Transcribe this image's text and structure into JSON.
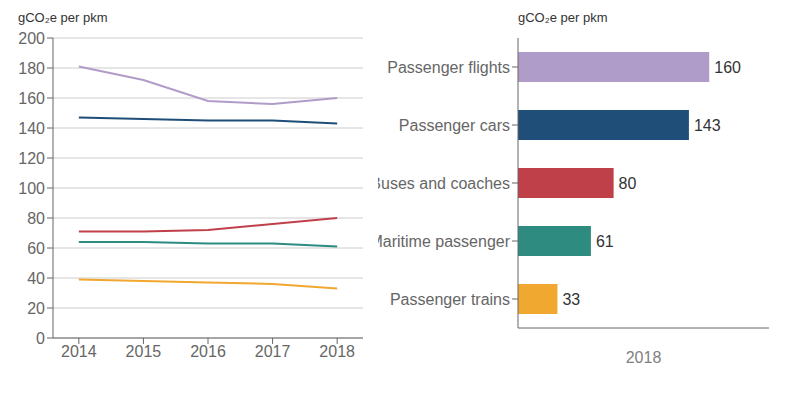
{
  "chart_data": [
    {
      "type": "line",
      "ylabel": "gCO₂e per pkm",
      "x": [
        2014,
        2015,
        2016,
        2017,
        2018
      ],
      "series": [
        {
          "color": "#b09cc8",
          "values": [
            181,
            172,
            158,
            156,
            160
          ]
        },
        {
          "color": "#1f4e79",
          "values": [
            147,
            146,
            145,
            145,
            143
          ]
        },
        {
          "color": "#c0404a",
          "values": [
            71,
            71,
            72,
            76,
            80
          ]
        },
        {
          "color": "#2e8b80",
          "values": [
            64,
            64,
            63,
            63,
            61
          ]
        },
        {
          "color": "#f0a830",
          "values": [
            39,
            38,
            37,
            36,
            33
          ]
        }
      ],
      "xlim": [
        2013.6,
        2018.4
      ],
      "xticks": [
        2014,
        2015,
        2016,
        2017,
        2018
      ],
      "ylim": [
        0,
        200
      ],
      "yticks": [
        0,
        20,
        40,
        60,
        80,
        100,
        120,
        140,
        160,
        180,
        200
      ],
      "grid": true
    },
    {
      "type": "bar",
      "orientation": "horizontal",
      "ylabel": "gCO₂e per pkm",
      "xlabel": "2018",
      "categories": [
        "Passenger flights",
        "Passenger cars",
        "Buses and coaches",
        "Maritime passenger",
        "Passenger trains"
      ],
      "values": [
        160,
        143,
        80,
        61,
        33
      ],
      "colors": [
        "#b09cc8",
        "#1f4e79",
        "#c0404a",
        "#2e8b80",
        "#f0a830"
      ],
      "xlim": [
        0,
        210
      ],
      "data_labels": true,
      "tick_labels": "y"
    }
  ]
}
